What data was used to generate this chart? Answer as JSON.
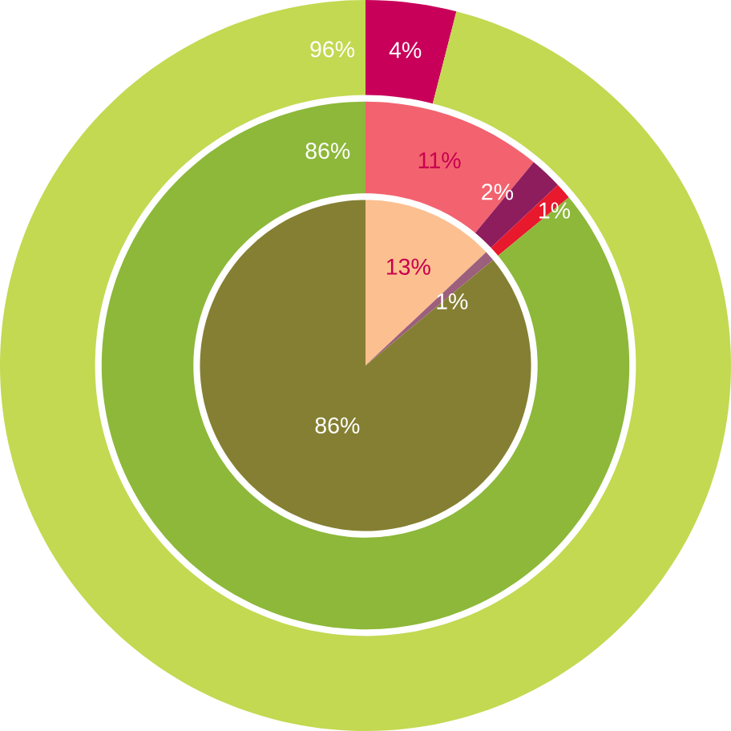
{
  "chart_data": [
    {
      "type": "donut",
      "categories": [
        null,
        null
      ],
      "values": [
        4,
        96
      ],
      "colors": [
        "#c8005a",
        "#c2d951"
      ],
      "value_labels": [
        "4%",
        "96%"
      ]
    },
    {
      "type": "donut",
      "categories": [
        null,
        null,
        null,
        null
      ],
      "values": [
        11,
        2,
        1,
        86
      ],
      "colors": [
        "#f2636f",
        "#8e1d5e",
        "#e8192c",
        "#8db83a"
      ],
      "value_labels": [
        "11%",
        "2%",
        "1%",
        "86%"
      ]
    },
    {
      "type": "pie",
      "categories": [
        null,
        null,
        null
      ],
      "values": [
        13,
        1,
        86
      ],
      "colors": [
        "#fcbf8f",
        "#9c5f7c",
        "#857f33"
      ],
      "value_labels": [
        "13%",
        "1%",
        "86%"
      ]
    }
  ]
}
